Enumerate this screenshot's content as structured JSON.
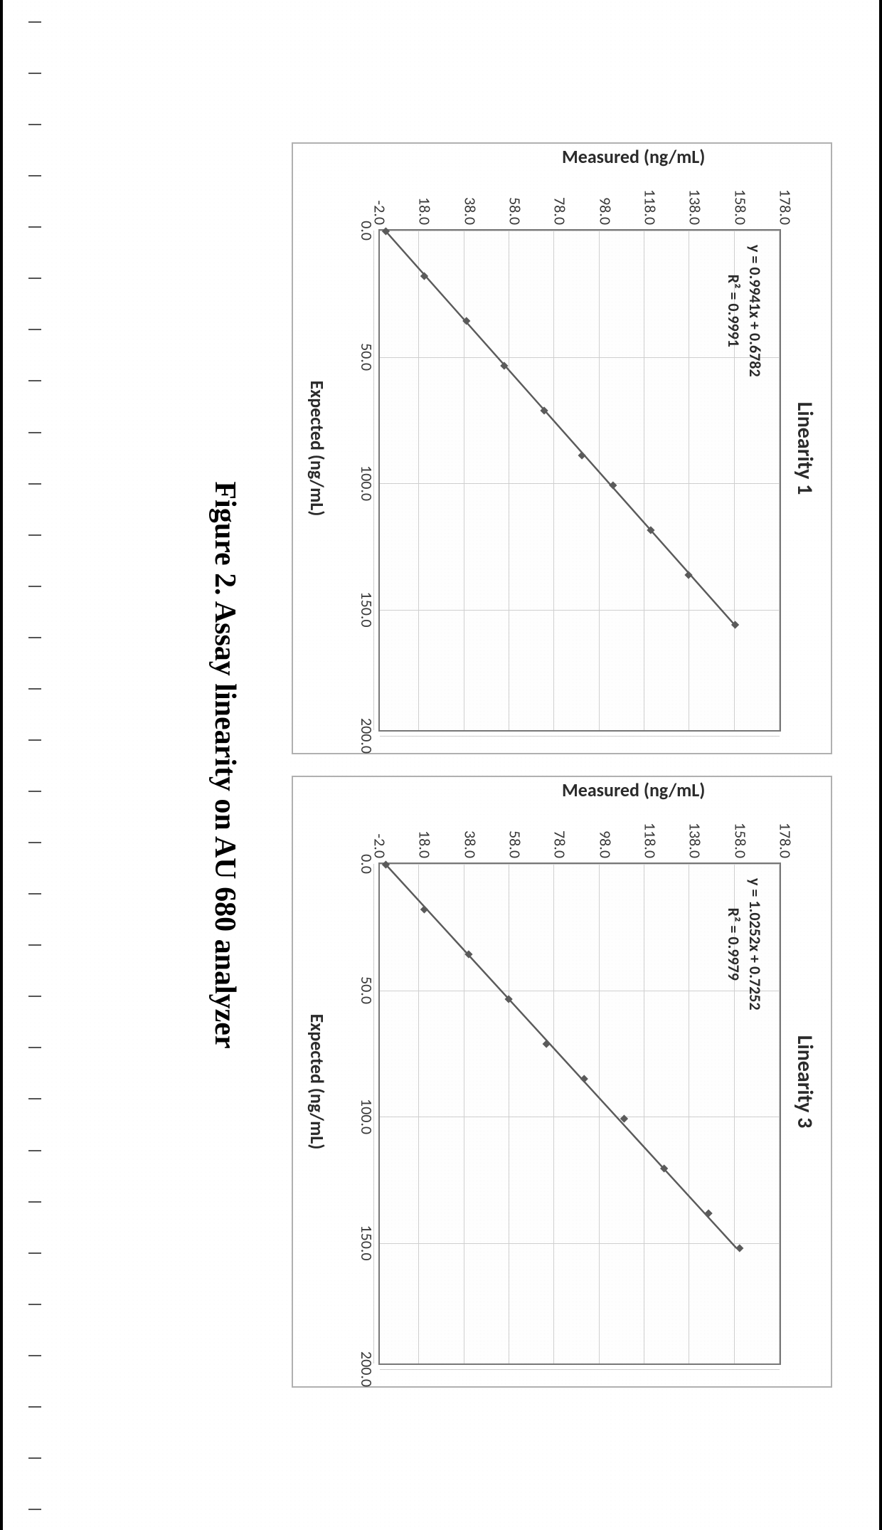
{
  "caption": "Figure 2. Assay linearity on AU 680 analyzer",
  "caption_fontfamily": "Times New Roman",
  "caption_fontsize": 42,
  "page_bg": "#ffffff",
  "panel_border_color": "#b0b0b0",
  "plot_border_color": "#777777",
  "grid_color": "#cfcfcf",
  "text_color": "#2b2b2b",
  "charts": [
    {
      "id": "linearity1",
      "type": "scatter-with-fit",
      "title": "Linearity 1",
      "equation": "y = 0.9941x + 0.6782",
      "r2": "R² = 0.9991",
      "xlabel": "Expected (ng/mL)",
      "ylabel": "Measured (ng/mL)",
      "xlim": [
        0.0,
        200.0
      ],
      "ylim": [
        -2.0,
        178.0
      ],
      "xticks": [
        0.0,
        50.0,
        100.0,
        150.0,
        200.0
      ],
      "xtick_labels": [
        "0.0",
        "50.0",
        "100.0",
        "150.0",
        "200.0"
      ],
      "yticks": [
        -2.0,
        18.0,
        38.0,
        58.0,
        78.0,
        98.0,
        118.0,
        138.0,
        158.0,
        178.0
      ],
      "ytick_labels": [
        "-2.0",
        "18.0",
        "38.0",
        "58.0",
        "78.0",
        "98.0",
        "118.0",
        "138.0",
        "158.0",
        "178.0"
      ],
      "marker_color": "#5b5b5b",
      "marker_shape": "diamond",
      "marker_size": 10,
      "line_color": "#5b5b5b",
      "line_width": 2.5,
      "points": [
        {
          "x": 0.0,
          "y": 0.7
        },
        {
          "x": 18.0,
          "y": 18.0
        },
        {
          "x": 36.0,
          "y": 37.0
        },
        {
          "x": 54.0,
          "y": 54.0
        },
        {
          "x": 72.0,
          "y": 72.0
        },
        {
          "x": 90.0,
          "y": 89.0
        },
        {
          "x": 102.0,
          "y": 103.0
        },
        {
          "x": 120.0,
          "y": 120.0
        },
        {
          "x": 138.0,
          "y": 137.0
        },
        {
          "x": 158.0,
          "y": 158.0
        }
      ],
      "fit": {
        "slope": 0.9941,
        "intercept": 0.6782
      }
    },
    {
      "id": "linearity3",
      "type": "scatter-with-fit",
      "title": "Linearity 3",
      "equation": "y = 1.0252x + 0.7252",
      "r2": "R² = 0.9979",
      "xlabel": "Expected (ng/mL)",
      "ylabel": "Measured (ng/mL)",
      "xlim": [
        0.0,
        200.0
      ],
      "ylim": [
        -2.0,
        178.0
      ],
      "xticks": [
        0.0,
        50.0,
        100.0,
        150.0,
        200.0
      ],
      "xtick_labels": [
        "0.0",
        "50.0",
        "100.0",
        "150.0",
        "200.0"
      ],
      "yticks": [
        -2.0,
        18.0,
        38.0,
        58.0,
        78.0,
        98.0,
        118.0,
        138.0,
        158.0,
        178.0
      ],
      "ytick_labels": [
        "-2.0",
        "18.0",
        "38.0",
        "58.0",
        "78.0",
        "98.0",
        "118.0",
        "138.0",
        "158.0",
        "178.0"
      ],
      "marker_color": "#5b5b5b",
      "marker_shape": "diamond",
      "marker_size": 10,
      "line_color": "#5b5b5b",
      "line_width": 2.5,
      "points": [
        {
          "x": 0.0,
          "y": 0.7
        },
        {
          "x": 18.0,
          "y": 18.0
        },
        {
          "x": 36.0,
          "y": 38.0
        },
        {
          "x": 54.0,
          "y": 56.0
        },
        {
          "x": 72.0,
          "y": 73.0
        },
        {
          "x": 86.0,
          "y": 90.0
        },
        {
          "x": 102.0,
          "y": 108.0
        },
        {
          "x": 122.0,
          "y": 126.0
        },
        {
          "x": 140.0,
          "y": 146.0
        },
        {
          "x": 154.0,
          "y": 160.0
        }
      ],
      "fit": {
        "slope": 1.0252,
        "intercept": 0.7252
      }
    }
  ],
  "ruler": {
    "tick_count": 30
  }
}
